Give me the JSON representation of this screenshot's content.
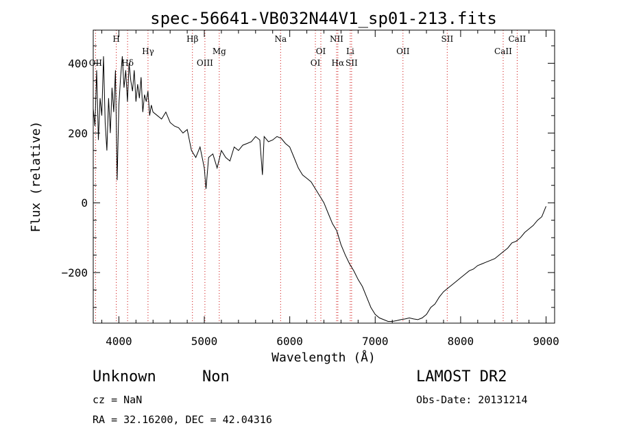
{
  "chart_data": {
    "type": "line",
    "title": "spec-56641-VB032N44V1_sp01-213.fits",
    "xlabel": "Wavelength (Å)",
    "ylabel": "Flux (relative)",
    "xlim": [
      3700,
      9100
    ],
    "ylim": [
      -345,
      495
    ],
    "xticks": [
      4000,
      5000,
      6000,
      7000,
      8000,
      9000
    ],
    "yticks": [
      -200,
      0,
      200,
      400
    ],
    "xtick_labels": [
      "4000",
      "5000",
      "6000",
      "7000",
      "8000",
      "9000"
    ],
    "ytick_labels": [
      "−200",
      "0",
      "200",
      "400"
    ],
    "grid": false,
    "series": [
      {
        "x": [
          3700,
          3720,
          3740,
          3760,
          3780,
          3800,
          3820,
          3840,
          3860,
          3880,
          3900,
          3920,
          3940,
          3960,
          3980,
          4000,
          4020,
          4040,
          4060,
          4080,
          4100,
          4120,
          4140,
          4160,
          4180,
          4200,
          4220,
          4240,
          4260,
          4280,
          4300,
          4320,
          4340,
          4360,
          4380,
          4400,
          4450,
          4500,
          4550,
          4600,
          4650,
          4700,
          4750,
          4800,
          4850,
          4900,
          4950,
          5000,
          5020,
          5050,
          5100,
          5150,
          5200,
          5250,
          5300,
          5350,
          5400,
          5450,
          5500,
          5550,
          5600,
          5650,
          5680,
          5700,
          5750,
          5800,
          5850,
          5900,
          5950,
          6000,
          6050,
          6100,
          6150,
          6200,
          6250,
          6300,
          6350,
          6400,
          6450,
          6500,
          6550,
          6600,
          6650,
          6700,
          6750,
          6800,
          6850,
          6900,
          6950,
          7000,
          7050,
          7100,
          7150,
          7200,
          7250,
          7300,
          7350,
          7400,
          7450,
          7500,
          7550,
          7600,
          7650,
          7700,
          7750,
          7800,
          7850,
          7900,
          7950,
          8000,
          8050,
          8100,
          8150,
          8200,
          8250,
          8300,
          8350,
          8400,
          8450,
          8500,
          8550,
          8600,
          8650,
          8700,
          8750,
          8800,
          8850,
          8900,
          8950,
          9000
        ],
        "y": [
          270,
          220,
          380,
          180,
          300,
          250,
          420,
          230,
          150,
          300,
          200,
          330,
          260,
          380,
          65,
          280,
          360,
          420,
          330,
          380,
          290,
          400,
          350,
          320,
          380,
          290,
          340,
          300,
          360,
          260,
          310,
          290,
          320,
          250,
          280,
          260,
          250,
          240,
          260,
          230,
          220,
          215,
          200,
          210,
          150,
          130,
          160,
          100,
          40,
          130,
          140,
          100,
          150,
          130,
          120,
          160,
          150,
          165,
          170,
          175,
          190,
          180,
          80,
          190,
          175,
          180,
          190,
          185,
          170,
          160,
          130,
          100,
          80,
          70,
          60,
          40,
          20,
          0,
          -30,
          -60,
          -80,
          -120,
          -150,
          -175,
          -195,
          -220,
          -240,
          -270,
          -300,
          -320,
          -330,
          -335,
          -340,
          -340,
          -338,
          -335,
          -333,
          -330,
          -333,
          -335,
          -330,
          -320,
          -300,
          -290,
          -270,
          -255,
          -245,
          -235,
          -225,
          -215,
          -205,
          -195,
          -190,
          -180,
          -175,
          -170,
          -165,
          -160,
          -150,
          -140,
          -130,
          -115,
          -110,
          -100,
          -85,
          -75,
          -65,
          -50,
          -40,
          -10
        ]
      }
    ],
    "lines": [
      {
        "label": "OII",
        "wavelength": 3727,
        "row": 3
      },
      {
        "label": "H",
        "wavelength": 3970,
        "row": 1
      },
      {
        "label": "Hδ",
        "wavelength": 4102,
        "row": 3
      },
      {
        "label": "Hγ",
        "wavelength": 4341,
        "row": 2
      },
      {
        "label": "Hβ",
        "wavelength": 4861,
        "row": 1
      },
      {
        "label": "OIII",
        "wavelength": 5007,
        "row": 3
      },
      {
        "label": "Mg",
        "wavelength": 5175,
        "row": 2
      },
      {
        "label": "Na",
        "wavelength": 5893,
        "row": 1
      },
      {
        "label": "OI",
        "wavelength": 6300,
        "row": 3
      },
      {
        "label": "OI",
        "wavelength": 6364,
        "row": 2
      },
      {
        "label": "NII",
        "wavelength": 6548,
        "row": 1
      },
      {
        "label": "Hα",
        "wavelength": 6563,
        "row": 3
      },
      {
        "label": "Li",
        "wavelength": 6708,
        "row": 2
      },
      {
        "label": "SII",
        "wavelength": 6724,
        "row": 3
      },
      {
        "label": "OII",
        "wavelength": 7325,
        "row": 2
      },
      {
        "label": "SII",
        "wavelength": 7843,
        "row": 1
      },
      {
        "label": "CaII",
        "wavelength": 8498,
        "row": 2
      },
      {
        "label": "CaII",
        "wavelength": 8662,
        "row": 1
      }
    ]
  },
  "footer": {
    "class_label": "Unknown",
    "subclass_label": "Non",
    "cz": "cz = NaN",
    "radec": "RA =  32.16200, DEC =  42.04316",
    "release": "LAMOST DR2",
    "obs_date": "Obs-Date: 20131214"
  }
}
